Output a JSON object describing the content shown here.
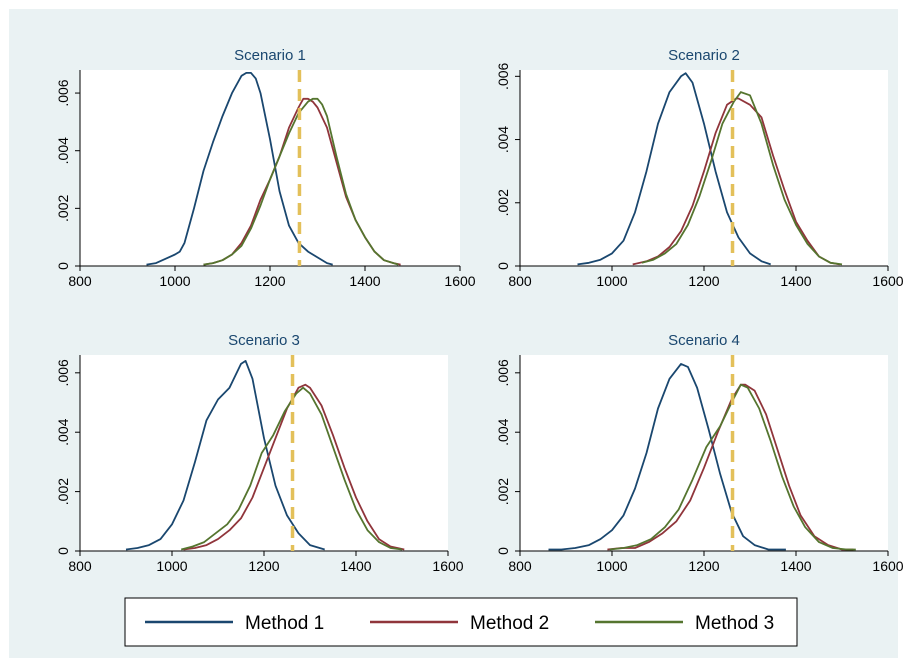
{
  "colors": {
    "background": "#ffffff",
    "panel": "#eaf2f3",
    "plot": "#ffffff",
    "axis": "#000000",
    "title": "#1a476f",
    "method1": "#1a476f",
    "method2": "#90353b",
    "method3": "#55752f",
    "reference": "#e3c05a"
  },
  "legend": {
    "position": "bottom",
    "items": [
      {
        "label": "Method 1",
        "color": "#1a476f"
      },
      {
        "label": "Method 2",
        "color": "#90353b"
      },
      {
        "label": "Method 3",
        "color": "#55752f"
      }
    ]
  },
  "chart_data": [
    {
      "type": "line",
      "title": "Scenario 1",
      "xlabel": "",
      "ylabel": "",
      "xlim": [
        800,
        1600
      ],
      "ylim": [
        0,
        0.0068
      ],
      "xticks": [
        800,
        1000,
        1200,
        1400,
        1600
      ],
      "yticks": [
        0,
        0.002,
        0.004,
        0.006
      ],
      "xtick_labels": [
        "800",
        "1000",
        "1200",
        "1400",
        "1600"
      ],
      "ytick_labels": [
        "0",
        ".002",
        ".004",
        ".006"
      ],
      "grid": false,
      "reference_line": {
        "x": 1262,
        "style": "dashed"
      },
      "series": [
        {
          "name": "Method 1",
          "x": [
            940,
            960,
            980,
            1000,
            1010,
            1020,
            1040,
            1060,
            1080,
            1100,
            1120,
            1140,
            1150,
            1160,
            1170,
            1180,
            1200,
            1220,
            1240,
            1260,
            1280,
            1300,
            1320,
            1332
          ],
          "values": [
            5e-05,
            0.0001,
            0.00025,
            0.0004,
            0.0005,
            0.0008,
            0.002,
            0.0033,
            0.0043,
            0.0052,
            0.006,
            0.0066,
            0.0067,
            0.0067,
            0.0065,
            0.006,
            0.0044,
            0.0026,
            0.0014,
            0.0008,
            0.0005,
            0.0003,
            0.0001,
            5e-05
          ]
        },
        {
          "name": "Method 2",
          "x": [
            1060,
            1080,
            1100,
            1120,
            1140,
            1160,
            1180,
            1200,
            1220,
            1240,
            1260,
            1270,
            1280,
            1290,
            1300,
            1320,
            1340,
            1360,
            1380,
            1400,
            1420,
            1440,
            1460,
            1475
          ],
          "values": [
            5e-05,
            0.0001,
            0.0002,
            0.0004,
            0.0008,
            0.0014,
            0.0023,
            0.003,
            0.0038,
            0.0048,
            0.0055,
            0.0058,
            0.0058,
            0.0057,
            0.0055,
            0.0048,
            0.0036,
            0.0024,
            0.0016,
            0.001,
            0.0005,
            0.0002,
            0.0001,
            5e-05
          ]
        },
        {
          "name": "Method 3",
          "x": [
            1060,
            1080,
            1100,
            1120,
            1140,
            1160,
            1180,
            1200,
            1220,
            1240,
            1260,
            1280,
            1290,
            1300,
            1310,
            1320,
            1340,
            1360,
            1380,
            1400,
            1420,
            1440,
            1460,
            1470
          ],
          "values": [
            5e-05,
            0.0001,
            0.0002,
            0.0004,
            0.0007,
            0.0013,
            0.0021,
            0.003,
            0.0038,
            0.0046,
            0.0053,
            0.0057,
            0.0058,
            0.0058,
            0.0056,
            0.0052,
            0.0038,
            0.0025,
            0.0016,
            0.001,
            0.0005,
            0.0002,
            0.0001,
            5e-05
          ]
        }
      ]
    },
    {
      "type": "line",
      "title": "Scenario 2",
      "xlabel": "",
      "ylabel": "",
      "xlim": [
        800,
        1600
      ],
      "ylim": [
        0,
        0.0062
      ],
      "xticks": [
        800,
        1000,
        1200,
        1400,
        1600
      ],
      "yticks": [
        0,
        0.002,
        0.004,
        0.006
      ],
      "xtick_labels": [
        "800",
        "1000",
        "1200",
        "1400",
        "1600"
      ],
      "ytick_labels": [
        "0",
        ".002",
        ".004",
        ".006"
      ],
      "grid": false,
      "reference_line": {
        "x": 1262,
        "style": "dashed"
      },
      "series": [
        {
          "name": "Method 1",
          "x": [
            925,
            950,
            975,
            1000,
            1025,
            1050,
            1075,
            1100,
            1125,
            1150,
            1160,
            1175,
            1200,
            1225,
            1250,
            1275,
            1300,
            1325,
            1345
          ],
          "values": [
            5e-05,
            0.0001,
            0.0002,
            0.0004,
            0.0008,
            0.0017,
            0.003,
            0.0045,
            0.0055,
            0.006,
            0.0061,
            0.0058,
            0.0045,
            0.003,
            0.0017,
            0.0009,
            0.0004,
            0.00015,
            5e-05
          ]
        },
        {
          "name": "Method 2",
          "x": [
            1045,
            1075,
            1100,
            1125,
            1150,
            1175,
            1200,
            1225,
            1250,
            1270,
            1275,
            1300,
            1325,
            1350,
            1375,
            1400,
            1425,
            1450,
            1475,
            1495
          ],
          "values": [
            5e-05,
            0.00015,
            0.0003,
            0.0006,
            0.0011,
            0.0019,
            0.003,
            0.0042,
            0.0051,
            0.0053,
            0.0053,
            0.0051,
            0.0047,
            0.0035,
            0.0024,
            0.0014,
            0.0008,
            0.0003,
            0.0001,
            5e-05
          ]
        },
        {
          "name": "Method 3",
          "x": [
            1065,
            1090,
            1115,
            1140,
            1165,
            1190,
            1215,
            1240,
            1265,
            1280,
            1300,
            1325,
            1350,
            1375,
            1400,
            1425,
            1450,
            1475,
            1500
          ],
          "values": [
            0.0001,
            0.0002,
            0.0004,
            0.0007,
            0.0013,
            0.0022,
            0.0033,
            0.0045,
            0.0052,
            0.0055,
            0.0054,
            0.0045,
            0.0032,
            0.0021,
            0.0013,
            0.0007,
            0.0003,
            0.0001,
            5e-05
          ]
        }
      ]
    },
    {
      "type": "line",
      "title": "Scenario 3",
      "xlabel": "",
      "ylabel": "",
      "xlim": [
        800,
        1600
      ],
      "ylim": [
        0,
        0.0066
      ],
      "xticks": [
        800,
        1000,
        1200,
        1400,
        1600
      ],
      "yticks": [
        0,
        0.002,
        0.004,
        0.006
      ],
      "xtick_labels": [
        "800",
        "1000",
        "1200",
        "1400",
        "1600"
      ],
      "ytick_labels": [
        "0",
        ".002",
        ".004",
        ".006"
      ],
      "grid": false,
      "reference_line": {
        "x": 1262,
        "style": "dashed"
      },
      "series": [
        {
          "name": "Method 1",
          "x": [
            900,
            925,
            950,
            975,
            1000,
            1025,
            1050,
            1075,
            1100,
            1125,
            1150,
            1160,
            1175,
            1200,
            1225,
            1250,
            1275,
            1300,
            1332
          ],
          "values": [
            5e-05,
            0.0001,
            0.0002,
            0.0004,
            0.0009,
            0.0017,
            0.003,
            0.0044,
            0.0051,
            0.0055,
            0.0063,
            0.0064,
            0.0058,
            0.0038,
            0.0022,
            0.0012,
            0.0006,
            0.0002,
            5e-05
          ]
        },
        {
          "name": "Method 2",
          "x": [
            1025,
            1050,
            1075,
            1100,
            1125,
            1150,
            1175,
            1200,
            1225,
            1250,
            1275,
            1290,
            1300,
            1325,
            1350,
            1375,
            1400,
            1425,
            1450,
            1475,
            1505
          ],
          "values": [
            5e-05,
            0.0001,
            0.0002,
            0.0004,
            0.0007,
            0.0011,
            0.0018,
            0.0028,
            0.0038,
            0.0048,
            0.0055,
            0.0056,
            0.0055,
            0.0049,
            0.0039,
            0.0028,
            0.0018,
            0.001,
            0.0004,
            0.00015,
            5e-05
          ]
        },
        {
          "name": "Method 3",
          "x": [
            1020,
            1045,
            1070,
            1095,
            1120,
            1145,
            1170,
            1195,
            1220,
            1245,
            1270,
            1285,
            1300,
            1325,
            1350,
            1375,
            1400,
            1425,
            1450,
            1475,
            1500
          ],
          "values": [
            5e-05,
            0.00015,
            0.0003,
            0.0006,
            0.0009,
            0.0014,
            0.0022,
            0.0033,
            0.0039,
            0.0047,
            0.0053,
            0.0055,
            0.0053,
            0.0046,
            0.0035,
            0.0024,
            0.0014,
            0.0007,
            0.0003,
            0.0001,
            5e-05
          ]
        }
      ]
    },
    {
      "type": "line",
      "title": "Scenario 4",
      "xlabel": "",
      "ylabel": "",
      "xlim": [
        800,
        1600
      ],
      "ylim": [
        0,
        0.0066
      ],
      "xticks": [
        800,
        1000,
        1200,
        1400,
        1600
      ],
      "yticks": [
        0,
        0.002,
        0.004,
        0.006
      ],
      "xtick_labels": [
        "800",
        "1000",
        "1200",
        "1400",
        "1600"
      ],
      "ytick_labels": [
        "0",
        ".002",
        ".004",
        ".006"
      ],
      "grid": false,
      "reference_line": {
        "x": 1262,
        "style": "dashed"
      },
      "series": [
        {
          "name": "Method 1",
          "x": [
            862,
            890,
            920,
            950,
            975,
            1000,
            1025,
            1050,
            1075,
            1100,
            1125,
            1150,
            1165,
            1185,
            1210,
            1235,
            1260,
            1285,
            1310,
            1340,
            1378
          ],
          "values": [
            5e-05,
            5e-05,
            0.0001,
            0.0002,
            0.0004,
            0.0007,
            0.0012,
            0.0021,
            0.0033,
            0.0048,
            0.0058,
            0.0063,
            0.0062,
            0.0055,
            0.0041,
            0.0026,
            0.0013,
            0.0005,
            0.0002,
            5e-05,
            5e-05
          ]
        },
        {
          "name": "Method 2",
          "x": [
            990,
            1020,
            1050,
            1080,
            1110,
            1140,
            1170,
            1200,
            1230,
            1260,
            1280,
            1290,
            1310,
            1335,
            1360,
            1385,
            1410,
            1440,
            1470,
            1500,
            1525
          ],
          "values": [
            5e-05,
            0.0001,
            0.0001,
            0.0003,
            0.0006,
            0.001,
            0.0017,
            0.0028,
            0.004,
            0.0051,
            0.0056,
            0.0056,
            0.0054,
            0.0046,
            0.0034,
            0.0022,
            0.0012,
            0.0005,
            0.0002,
            5e-05,
            5e-05
          ]
        },
        {
          "name": "Method 3",
          "x": [
            995,
            1025,
            1055,
            1085,
            1115,
            1145,
            1175,
            1205,
            1235,
            1260,
            1280,
            1295,
            1320,
            1345,
            1370,
            1395,
            1420,
            1450,
            1480,
            1510,
            1530
          ],
          "values": [
            5e-05,
            0.0001,
            0.0002,
            0.0004,
            0.0008,
            0.0014,
            0.0024,
            0.0035,
            0.0042,
            0.005,
            0.0056,
            0.0055,
            0.0048,
            0.0037,
            0.0025,
            0.0015,
            0.0008,
            0.0003,
            0.0001,
            5e-05,
            5e-05
          ]
        }
      ]
    }
  ]
}
